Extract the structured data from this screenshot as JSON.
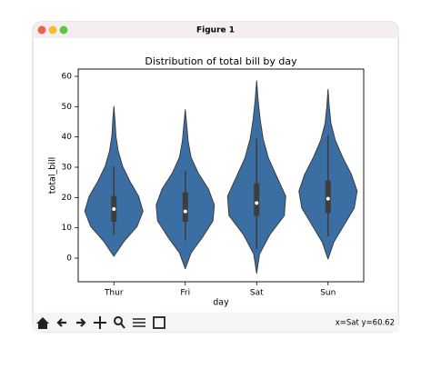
{
  "window": {
    "title": "Figure 1"
  },
  "chart_data": {
    "type": "violin",
    "title": "Distribution of total bill by day",
    "x_label": "day",
    "y_label": "total_bill",
    "categories": [
      "Thur",
      "Fri",
      "Sat",
      "Sun"
    ],
    "color": "#3b6fa4",
    "ylim": [
      -7.8,
      62.4
    ],
    "yticks": [
      0,
      10,
      20,
      30,
      40,
      50,
      60
    ],
    "violins": [
      {
        "min": 0.6,
        "max": 50.1,
        "density": [
          0,
          0.35,
          0.8,
          1.0,
          0.85,
          0.55,
          0.3,
          0.15,
          0.07,
          0.04,
          0
        ],
        "whisker_low": 7.6,
        "q1": 12,
        "median": 16.2,
        "q3": 20.5,
        "whisker_high": 30.3
      },
      {
        "min": -3.5,
        "max": 49,
        "density": [
          0,
          0.2,
          0.6,
          0.95,
          1.0,
          0.8,
          0.45,
          0.2,
          0.1,
          0.05,
          0
        ],
        "whisker_low": 5.8,
        "q1": 12,
        "median": 15.4,
        "q3": 21.7,
        "whisker_high": 28.9
      },
      {
        "min": -5,
        "max": 58.5,
        "density": [
          0,
          0.1,
          0.45,
          0.95,
          1.0,
          0.7,
          0.4,
          0.22,
          0.12,
          0.05,
          0
        ],
        "whisker_low": 3,
        "q1": 13.9,
        "median": 18.2,
        "q3": 24.7,
        "whisker_high": 39.4
      },
      {
        "min": -0.3,
        "max": 55.7,
        "density": [
          0,
          0.2,
          0.55,
          0.9,
          1.0,
          0.8,
          0.5,
          0.25,
          0.1,
          0.04,
          0
        ],
        "whisker_low": 7.25,
        "q1": 14.9,
        "median": 19.6,
        "q3": 25.6,
        "whisker_high": 40.6
      }
    ]
  },
  "toolbar": {
    "status": "x=Sat y=60.62"
  }
}
